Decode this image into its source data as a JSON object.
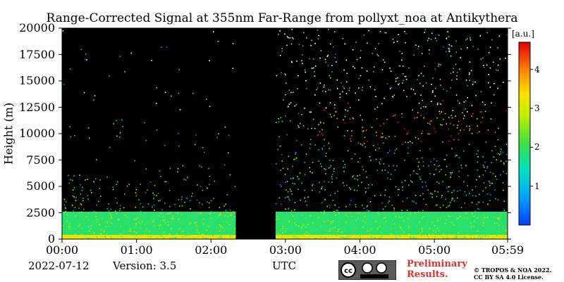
{
  "chart_data": {
    "type": "heatmap",
    "title": "Range-Corrected Signal at 355nm Far-Range from pollyxt_noa at Antikythera",
    "ylabel": "Height (m)",
    "xlabel": "UTC",
    "ylim": [
      0,
      20000
    ],
    "yticks": [
      "0",
      "2500",
      "5000",
      "7500",
      "10000",
      "12500",
      "15000",
      "17500",
      "20000"
    ],
    "xticks": [
      "00:00",
      "01:00",
      "02:00",
      "03:00",
      "04:00",
      "05:00",
      "05:59"
    ],
    "colorbar": {
      "label": "[a.u.]",
      "range": [
        0,
        4.7
      ],
      "ticks": [
        "1",
        "2",
        "3",
        "4"
      ],
      "colormap": "jet"
    },
    "gaps": [
      {
        "start": "02:20",
        "end": "02:52"
      }
    ],
    "layers": [
      {
        "name": "surface layer",
        "top_m": 400,
        "start": "00:00",
        "end": "05:59",
        "signal": 3.2
      },
      {
        "name": "boundary layer",
        "top_m": 2600,
        "start": "00:00",
        "end": "05:59",
        "signal": 2.2
      },
      {
        "name": "cirrus",
        "bottom_m": 9000,
        "top_m": 14000,
        "start": "03:20",
        "end": "05:59",
        "signal": 4.0
      }
    ]
  },
  "footer": {
    "date": "2022-07-12",
    "version": "Version: 3.5",
    "utc": "UTC",
    "preliminary": "Preliminary\nResults.",
    "copyright": "© TROPOS & NOA 2022.\nCC BY SA 4.0 License."
  }
}
